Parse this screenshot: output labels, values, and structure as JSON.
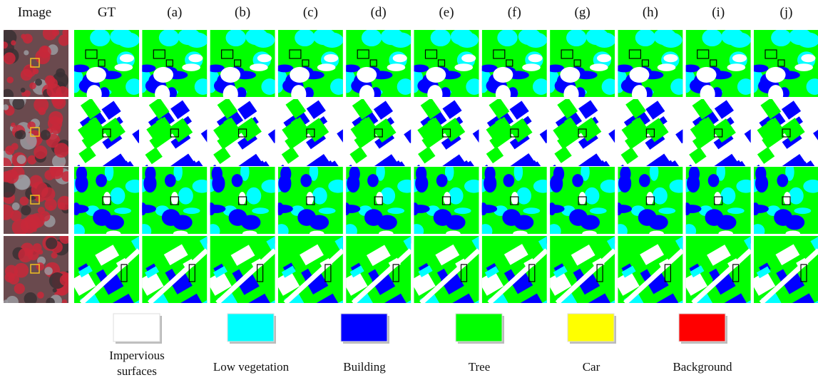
{
  "header": {
    "columns": [
      "Image",
      "GT",
      "(a)",
      "(b)",
      "(c)",
      "(d)",
      "(e)",
      "(f)",
      "(g)",
      "(h)",
      "(i)",
      "(j)"
    ]
  },
  "legend": [
    {
      "label": "Impervious surfaces",
      "color": "#ffffff"
    },
    {
      "label": "Low vegetation",
      "color": "#00ffff"
    },
    {
      "label": "Building",
      "color": "#0000ff"
    },
    {
      "label": "Tree",
      "color": "#00ff00"
    },
    {
      "label": "Car",
      "color": "#ffff00"
    },
    {
      "label": "Background",
      "color": "#ff0000"
    }
  ]
}
